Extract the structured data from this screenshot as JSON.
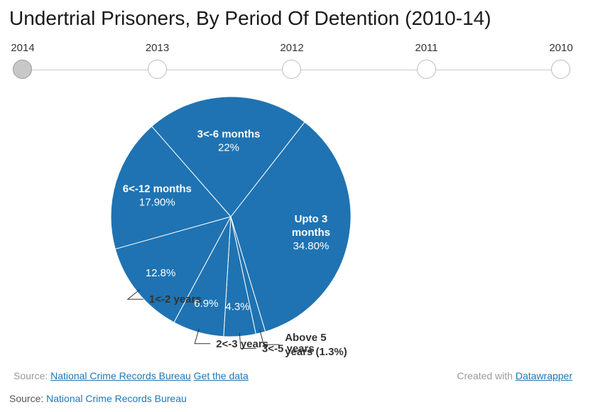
{
  "title": "Undertrial Prisoners, By Period Of Detention (2010-14)",
  "timeline": {
    "years": [
      "2014",
      "2013",
      "2012",
      "2011",
      "2010"
    ],
    "selected": "2014"
  },
  "colors": {
    "slice": "#1f73b2",
    "accent": "#1f77b4",
    "dot_active": "#c8c8c8"
  },
  "chart_data": {
    "type": "pie",
    "title": "Undertrial Prisoners, By Period Of Detention (2010-14)",
    "slices": [
      {
        "label": "Upto 3 months",
        "value": 34.8,
        "display": "34.80%",
        "label_lines": [
          "Upto 3",
          "months"
        ],
        "placement": "inside"
      },
      {
        "label": "Above 5 years",
        "value": 1.3,
        "display": "",
        "label_lines": [
          "Above 5",
          "years (1.3%)"
        ],
        "placement": "outside"
      },
      {
        "label": "3<-5 years",
        "value": 4.3,
        "display": "4.3%",
        "label_lines": [
          "3<-5 years"
        ],
        "placement": "split"
      },
      {
        "label": "2<-3 years",
        "value": 6.9,
        "display": "6.9%",
        "label_lines": [
          "2<-3 years"
        ],
        "placement": "split"
      },
      {
        "label": "1<-2 years",
        "value": 12.8,
        "display": "12.8%",
        "label_lines": [
          "1<-2 years"
        ],
        "placement": "split"
      },
      {
        "label": "6<-12 months",
        "value": 17.9,
        "display": "17.90%",
        "label_lines": [
          "6<-12 months"
        ],
        "placement": "inside"
      },
      {
        "label": "3<-6 months",
        "value": 22,
        "display": "22%",
        "label_lines": [
          "3<-6 months"
        ],
        "placement": "inside"
      }
    ],
    "start_angle_deg": -52
  },
  "footer": {
    "source_prefix": "Source:",
    "source_link": "National Crime Records Bureau",
    "get_data": "Get the data",
    "created_prefix": "Created with",
    "created_link": "Datawrapper"
  },
  "bottom_source": {
    "prefix": "Source:",
    "link": "National Crime Records Bureau"
  }
}
